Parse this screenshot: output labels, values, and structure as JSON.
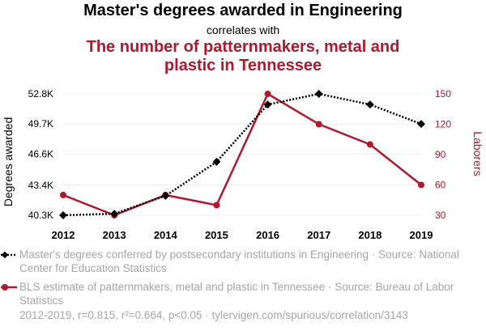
{
  "header": {
    "title": "Master's degrees awarded in Engineering",
    "subtitle": "correlates with",
    "title2": "The number of patternmakers, metal and plastic in Tennessee"
  },
  "chart_data": {
    "type": "line",
    "x": [
      2012,
      2013,
      2014,
      2015,
      2016,
      2017,
      2018,
      2019
    ],
    "categories": [
      "2012",
      "2013",
      "2014",
      "2015",
      "2016",
      "2017",
      "2018",
      "2019"
    ],
    "series": [
      {
        "name": "Master's degrees conferred by postsecondary institutions in Engineering",
        "axis": "left",
        "color": "#000000",
        "style": "dotted",
        "marker": "diamond",
        "values": [
          40300,
          40450,
          42300,
          45800,
          51700,
          52800,
          51700,
          49700
        ]
      },
      {
        "name": "BLS estimate of patternmakers, metal and plastic in Tennessee",
        "axis": "right",
        "color": "#b5162b",
        "style": "solid",
        "marker": "circle",
        "values": [
          50,
          30,
          50,
          40,
          150,
          120,
          100,
          60
        ]
      }
    ],
    "ylabel": "Degrees awarded",
    "ylabel_right": "Laborers",
    "yticks_left": [
      "40.3K",
      "43.4K",
      "46.6K",
      "49.7K",
      "52.8K"
    ],
    "yticks_left_values": [
      40300,
      43400,
      46600,
      49700,
      52800
    ],
    "ylim_left": [
      40300,
      52800
    ],
    "yticks_right": [
      "30",
      "60",
      "90",
      "120",
      "150"
    ],
    "yticks_right_values": [
      30,
      60,
      90,
      120,
      150
    ],
    "ylim_right": [
      30,
      150
    ]
  },
  "legend": {
    "item1": "Master's degrees conferred by postsecondary institutions in Engineering · Source: National Center for Education Statistics",
    "item2": "BLS estimate of patternmakers, metal and plastic in Tennessee · Source: Bureau of Labor Statistics"
  },
  "footer": "2012-2019, r=0.815, r²=0.664, p<0.05 · tylervigen.com/spurious/correlation/3143"
}
